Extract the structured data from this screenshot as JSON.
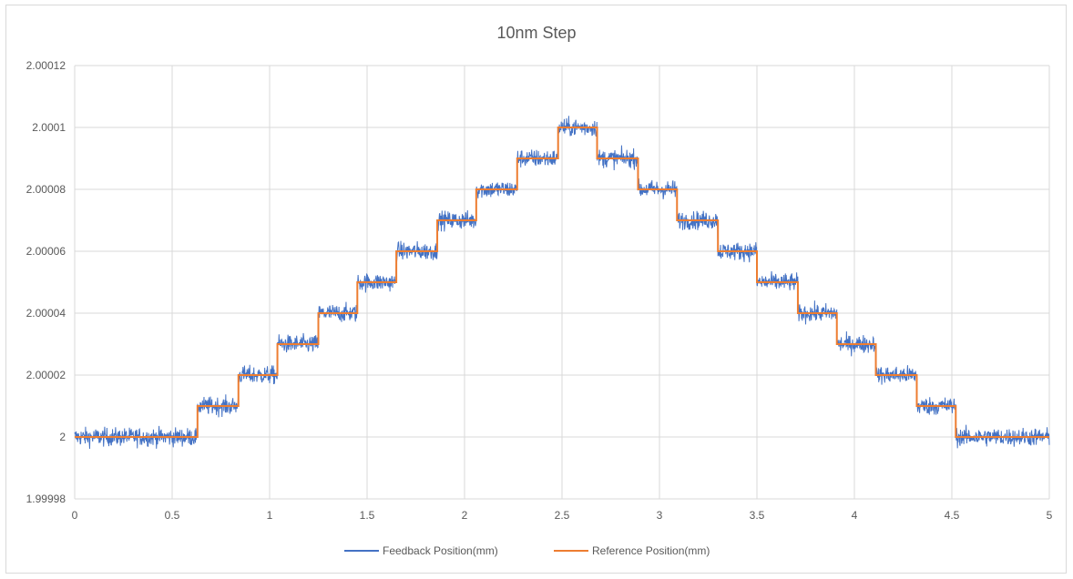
{
  "chart_data": {
    "type": "line",
    "title": "10nm Step",
    "xlabel": "",
    "ylabel": "",
    "xlim": [
      0,
      5
    ],
    "ylim": [
      1.99998,
      2.00012
    ],
    "x_ticks": [
      0,
      0.5,
      1,
      1.5,
      2,
      2.5,
      3,
      3.5,
      4,
      4.5,
      5
    ],
    "x_tick_labels": [
      "0",
      "0.5",
      "1",
      "1.5",
      "2",
      "2.5",
      "3",
      "3.5",
      "4",
      "4.5",
      "5"
    ],
    "y_ticks": [
      1.99998,
      2,
      2.00002,
      2.00004,
      2.00006,
      2.00008,
      2.0001,
      2.00012
    ],
    "y_tick_labels": [
      "1.99998",
      "2",
      "2.00002",
      "2.00004",
      "2.00006",
      "2.00008",
      "2.0001",
      "2.00012"
    ],
    "grid": true,
    "legend_position": "bottom",
    "series": [
      {
        "name": "Feedback Position(mm)",
        "color": "#4472c4",
        "style": "noisy-line",
        "noise_amplitude_mm": 5e-06,
        "note": "same step profile as reference with high-frequency noise"
      },
      {
        "name": "Reference Position(mm)",
        "color": "#ed7d31",
        "style": "step",
        "x": [
          0,
          0.63,
          0.63,
          0.84,
          0.84,
          1.04,
          1.04,
          1.25,
          1.25,
          1.45,
          1.45,
          1.65,
          1.65,
          1.86,
          1.86,
          2.06,
          2.06,
          2.27,
          2.27,
          2.48,
          2.48,
          2.68,
          2.68,
          2.89,
          2.89,
          3.09,
          3.09,
          3.3,
          3.3,
          3.5,
          3.5,
          3.71,
          3.71,
          3.91,
          3.91,
          4.11,
          4.11,
          4.32,
          4.32,
          4.52,
          4.52,
          5.0
        ],
        "y": [
          2.0,
          2.0,
          2.00001,
          2.00001,
          2.00002,
          2.00002,
          2.00003,
          2.00003,
          2.00004,
          2.00004,
          2.00005,
          2.00005,
          2.00006,
          2.00006,
          2.00007,
          2.00007,
          2.00008,
          2.00008,
          2.00009,
          2.00009,
          2.0001,
          2.0001,
          2.00009,
          2.00009,
          2.00008,
          2.00008,
          2.00007,
          2.00007,
          2.00006,
          2.00006,
          2.00005,
          2.00005,
          2.00004,
          2.00004,
          2.00003,
          2.00003,
          2.00002,
          2.00002,
          2.00001,
          2.00001,
          2.0,
          2.0
        ]
      }
    ]
  }
}
